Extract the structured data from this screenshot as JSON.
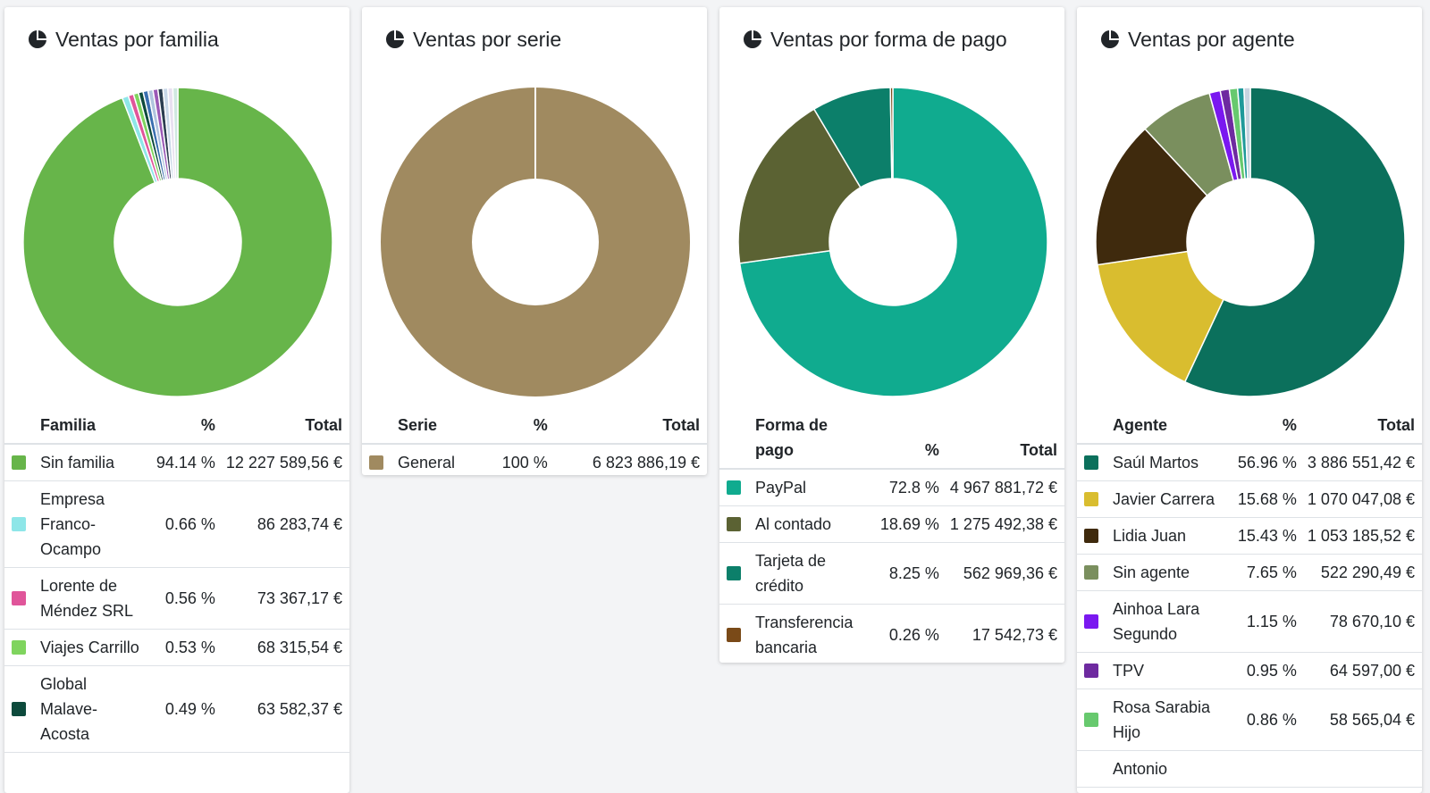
{
  "cards": [
    {
      "title": "Ventas por familia",
      "icon": "pie-chart-icon",
      "headers": {
        "name": "Familia",
        "pct": "%",
        "total": "Total"
      },
      "rows": [
        {
          "name": "Sin familia",
          "pct": "94.14 %",
          "total": "12 227 589,56 €",
          "color": "#67b54a"
        },
        {
          "name": "Empresa Franco-Ocampo",
          "pct": "0.66 %",
          "total": "86 283,74 €",
          "color": "#8ee6e8"
        },
        {
          "name": "Lorente de Méndez SRL",
          "pct": "0.56 %",
          "total": "73 367,17 €",
          "color": "#e0559a"
        },
        {
          "name": "Viajes Carrillo",
          "pct": "0.53 %",
          "total": "68 315,54 €",
          "color": "#7fd45e"
        },
        {
          "name": "Global Malave-Acosta",
          "pct": "0.49 %",
          "total": "63 582,37 €",
          "color": "#0d4a3c"
        }
      ]
    },
    {
      "title": "Ventas por serie",
      "icon": "pie-chart-icon",
      "headers": {
        "name": "Serie",
        "pct": "%",
        "total": "Total"
      },
      "rows": [
        {
          "name": "General",
          "pct": "100 %",
          "total": "6 823 886,19 €",
          "color": "#a08a60"
        }
      ]
    },
    {
      "title": "Ventas por forma de pago",
      "icon": "pie-chart-icon",
      "headers": {
        "name": "Forma de pago",
        "pct": "%",
        "total": "Total"
      },
      "rows": [
        {
          "name": "PayPal",
          "pct": "72.8 %",
          "total": "4 967 881,72 €",
          "color": "#10ab8f"
        },
        {
          "name": "Al contado",
          "pct": "18.69 %",
          "total": "1 275 492,38 €",
          "color": "#5b6233"
        },
        {
          "name": "Tarjeta de crédito",
          "pct": "8.25 %",
          "total": "562 969,36 €",
          "color": "#0c7f6a"
        },
        {
          "name": "Transferencia bancaria",
          "pct": "0.26 %",
          "total": "17 542,73 €",
          "color": "#7a4a18"
        }
      ]
    },
    {
      "title": "Ventas por agente",
      "icon": "pie-chart-icon",
      "headers": {
        "name": "Agente",
        "pct": "%",
        "total": "Total"
      },
      "rows": [
        {
          "name": "Saúl Martos",
          "pct": "56.96 %",
          "total": "3 886 551,42 €",
          "color": "#0b705c"
        },
        {
          "name": "Javier Carrera",
          "pct": "15.68 %",
          "total": "1 070 047,08 €",
          "color": "#d9bd2f"
        },
        {
          "name": "Lidia Juan",
          "pct": "15.43 %",
          "total": "1 053 185,52 €",
          "color": "#3f2a0d"
        },
        {
          "name": "Sin agente",
          "pct": "7.65 %",
          "total": "522 290,49 €",
          "color": "#7a8f5e"
        },
        {
          "name": "Ainhoa Lara Segundo",
          "pct": "1.15 %",
          "total": "78 670,10 €",
          "color": "#7a18f0"
        },
        {
          "name": "TPV",
          "pct": "0.95 %",
          "total": "64 597,00 €",
          "color": "#6e2aa0"
        },
        {
          "name": "Rosa Sarabia Hijo",
          "pct": "0.86 %",
          "total": "58 565,04 €",
          "color": "#67c96e"
        },
        {
          "name": "Antonio",
          "pct": "",
          "total": "",
          "color": ""
        }
      ]
    }
  ],
  "chart_data": [
    {
      "type": "pie",
      "title": "Ventas por familia",
      "categories": [
        "Sin familia",
        "Empresa Franco-Ocampo",
        "Lorente de Méndez SRL",
        "Viajes Carrillo",
        "Global Malave-Acosta"
      ],
      "values": [
        94.14,
        0.66,
        0.56,
        0.53,
        0.49
      ],
      "colors": [
        "#67b54a",
        "#8ee6e8",
        "#e0559a",
        "#7fd45e",
        "#0d4a3c"
      ],
      "remainder_colors": [
        "#3a6fb0",
        "#b0c4de",
        "#9b59b6",
        "#2c3e50",
        "#c9d8e8",
        "#e8e0f0",
        "#d0e8e0"
      ]
    },
    {
      "type": "pie",
      "title": "Ventas por serie",
      "categories": [
        "General"
      ],
      "values": [
        100
      ],
      "colors": [
        "#a08a60"
      ]
    },
    {
      "type": "pie",
      "title": "Ventas por forma de pago",
      "categories": [
        "PayPal",
        "Al contado",
        "Tarjeta de crédito",
        "Transferencia bancaria"
      ],
      "values": [
        72.8,
        18.69,
        8.25,
        0.26
      ],
      "colors": [
        "#10ab8f",
        "#5b6233",
        "#0c7f6a",
        "#7a4a18"
      ]
    },
    {
      "type": "pie",
      "title": "Ventas por agente",
      "categories": [
        "Saúl Martos",
        "Javier Carrera",
        "Lidia Juan",
        "Sin agente",
        "Ainhoa Lara Segundo",
        "TPV",
        "Rosa Sarabia Hijo"
      ],
      "values": [
        56.96,
        15.68,
        15.43,
        7.65,
        1.15,
        0.95,
        0.86
      ],
      "colors": [
        "#0b705c",
        "#d9bd2f",
        "#3f2a0d",
        "#7a8f5e",
        "#7a18f0",
        "#6e2aa0",
        "#67c96e"
      ],
      "remainder_colors": [
        "#1f9a9a",
        "#c8d4e0"
      ]
    }
  ]
}
